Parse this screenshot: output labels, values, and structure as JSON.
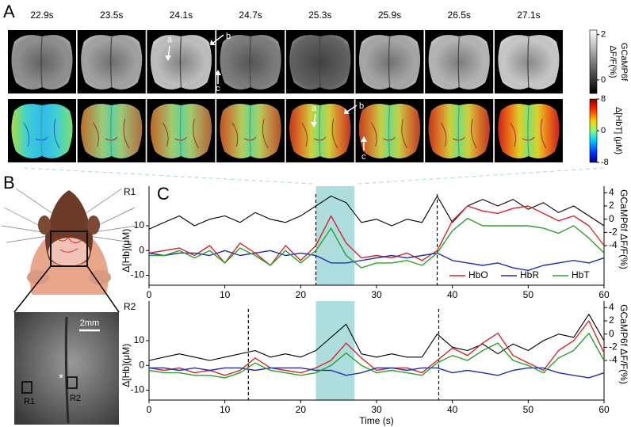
{
  "panel_labels": [
    "A",
    "B",
    "C"
  ],
  "frames": {
    "times": [
      "22.9s",
      "23.5s",
      "24.1s",
      "24.7s",
      "25.3s",
      "25.9s",
      "26.5s",
      "27.1s"
    ],
    "arrows_top": [
      "a",
      "b",
      "c"
    ],
    "arrows_bottom": [
      "a",
      "b",
      "c"
    ]
  },
  "colorbars": [
    {
      "label": [
        "GCaMP6f",
        "ΔF/F(%)"
      ],
      "lim": [
        -0.6,
        2.2
      ],
      "ticks": [
        0,
        2
      ]
    },
    {
      "label": [
        "Δ[HbT] (μM)"
      ],
      "lim": [
        -8,
        8
      ],
      "ticks": [
        -8,
        0,
        8
      ]
    }
  ],
  "inset": {
    "scale": "2mm",
    "marker": "*",
    "rois": [
      "R1",
      "R2"
    ]
  },
  "chart_data": [
    {
      "type": "line",
      "title": "R1",
      "ylabel": "Δ[Hb](μM)",
      "y2label": "GCaMP6f  ΔF/F(%)",
      "x": [
        0,
        2,
        4,
        6,
        8,
        10,
        12,
        14,
        16,
        18,
        20,
        22,
        24,
        26,
        28,
        30,
        32,
        34,
        36,
        38,
        40,
        42,
        44,
        46,
        48,
        50,
        52,
        54,
        56,
        58,
        60
      ],
      "xlim": [
        0,
        60
      ],
      "xticks": [
        0,
        10,
        20,
        30,
        40,
        50,
        60
      ],
      "ylim": [
        -14,
        26
      ],
      "yticks": [
        -10,
        0,
        10
      ],
      "y2lim": [
        -10,
        5
      ],
      "y2ticks": [
        -4,
        -2,
        0,
        2,
        4
      ],
      "highlight": [
        22,
        27.1
      ],
      "events": [
        22,
        38
      ],
      "legend": "lower right",
      "series": [
        {
          "color": "#000000",
          "axis": "y2",
          "values": [
            -1.5,
            -0.5,
            0.5,
            -1,
            0,
            0.5,
            -0.5,
            1,
            0,
            -0.5,
            0.5,
            2,
            3.5,
            2.5,
            -0.5,
            0,
            -1,
            0,
            -0.5,
            3.5,
            -0.5,
            2,
            3,
            2,
            3,
            1.5,
            2.5,
            1,
            2,
            0.5,
            -1
          ]
        },
        {
          "name": "HbO",
          "color": "#d62728",
          "values": [
            -1,
            0,
            1,
            -2,
            2,
            -5,
            3,
            -1,
            -6,
            2,
            -4,
            2,
            14,
            3,
            -3,
            -2,
            -3,
            -1,
            -4,
            0,
            12,
            18,
            16,
            15,
            17,
            18,
            15,
            12,
            14,
            10,
            2
          ]
        },
        {
          "name": "HbR",
          "color": "#1f2fb4",
          "values": [
            -1,
            -2,
            -1,
            -1,
            -2,
            0,
            -2,
            -1,
            0,
            -2,
            -1,
            -2,
            -5,
            -5,
            -4,
            -3,
            -2,
            -3,
            -2,
            -1,
            -4,
            -5,
            -6,
            -5,
            -7,
            -8,
            -6,
            -5,
            -4,
            -5,
            -3
          ]
        },
        {
          "name": "HbT",
          "color": "#2ca02c",
          "values": [
            -2,
            -2,
            0,
            -3,
            0,
            -5,
            1,
            -2,
            -6,
            0,
            -5,
            0,
            9,
            -2,
            -7,
            -5,
            -5,
            -4,
            -6,
            -1,
            8,
            13,
            10,
            10,
            10,
            10,
            9,
            7,
            10,
            5,
            -1
          ]
        }
      ]
    },
    {
      "type": "line",
      "title": "R2",
      "ylabel": "Δ[Hb](μM)",
      "y2label": "GCaMP6f  ΔF/F(%)",
      "xlabel": "Time (s)",
      "x": [
        0,
        2,
        4,
        6,
        8,
        10,
        12,
        14,
        16,
        18,
        20,
        22,
        24,
        26,
        28,
        30,
        32,
        34,
        36,
        38,
        40,
        42,
        44,
        46,
        48,
        50,
        52,
        54,
        56,
        58,
        60
      ],
      "xlim": [
        0,
        60
      ],
      "xticks": [
        0,
        10,
        20,
        30,
        40,
        50,
        60
      ],
      "ylim": [
        -14,
        26
      ],
      "yticks": [
        -10,
        0,
        10
      ],
      "y2lim": [
        -10,
        5
      ],
      "y2ticks": [
        -4,
        -2,
        0,
        2,
        4
      ],
      "highlight": [
        22,
        27.1
      ],
      "events": [
        13.1,
        38.2
      ],
      "series": [
        {
          "color": "#000000",
          "axis": "y2",
          "values": [
            -4,
            -3.5,
            -3,
            -3.5,
            -4,
            -3.5,
            -3,
            -2.5,
            -3.5,
            -3,
            -3.5,
            -2.5,
            -0.5,
            1.5,
            -3,
            -3.5,
            -3,
            -3.5,
            -3.5,
            0,
            -2,
            -2.5,
            -1.5,
            -3,
            -1.5,
            -2.5,
            -1,
            0,
            -0.5,
            3,
            -1
          ]
        },
        {
          "color": "#d62728",
          "values": [
            -1,
            -2,
            -1,
            -3,
            -2,
            -4,
            -2,
            3,
            -1,
            -2,
            -3,
            -1,
            2,
            9,
            3,
            -2,
            -1,
            -1,
            -3,
            2,
            7,
            4,
            9,
            13,
            4,
            1,
            -2,
            6,
            10,
            18,
            5
          ]
        },
        {
          "color": "#1f2fb4",
          "values": [
            -1,
            -1,
            -2,
            -1,
            -2,
            -1,
            -1,
            -2,
            -1,
            -1,
            -1,
            -2,
            -2,
            -4,
            -3,
            -1,
            -1,
            -2,
            -1,
            -1,
            -3,
            -2,
            -3,
            -4,
            -2,
            -1,
            -1,
            -3,
            -4,
            -5,
            -3
          ]
        },
        {
          "color": "#2ca02c",
          "values": [
            -2,
            -3,
            -3,
            -4,
            -4,
            -5,
            -3,
            1,
            -2,
            -3,
            -4,
            -3,
            0,
            5,
            0,
            -3,
            -2,
            -3,
            -4,
            1,
            4,
            2,
            6,
            9,
            2,
            0,
            -3,
            3,
            6,
            13,
            2
          ]
        }
      ]
    }
  ]
}
